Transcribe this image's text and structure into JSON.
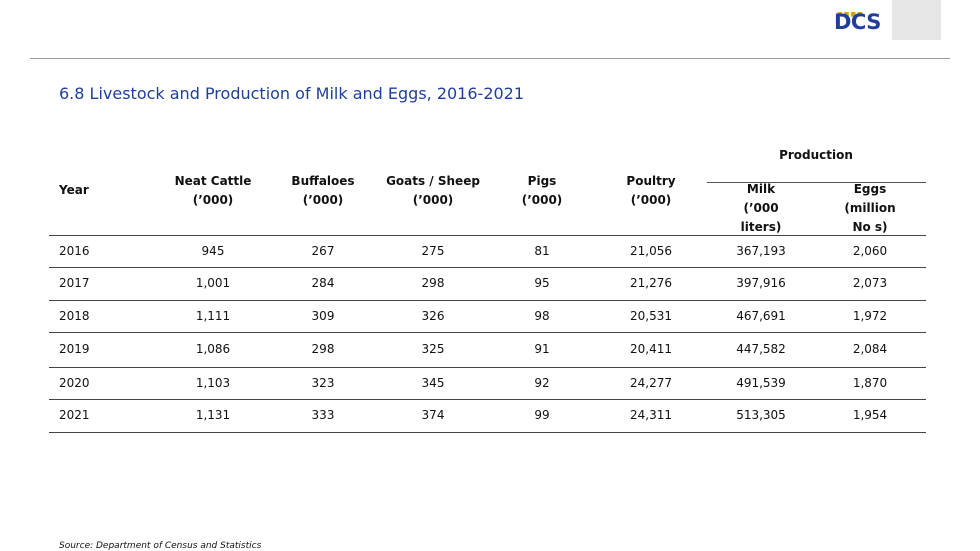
{
  "logo": {
    "text": "DCS",
    "dots": "■■■■"
  },
  "title": "6.8 Livestock and  Production of  Milk and  Eggs, 2016-2021",
  "source": "Source: Department of Census and Statistics",
  "table": {
    "group_header": "Production",
    "headers": {
      "year": "Year",
      "cattle": [
        "Neat Cattle",
        "(’000)"
      ],
      "buffaloes": [
        "Buffaloes",
        "(’000)"
      ],
      "goats": [
        "Goats / Sheep",
        "(’000)"
      ],
      "pigs": [
        "Pigs",
        "(’000)"
      ],
      "poultry": [
        "Poultry",
        "(’000)"
      ],
      "milk": [
        "Milk",
        "(’000",
        "liters)"
      ],
      "eggs": [
        "Eggs",
        "(million",
        "No s)"
      ]
    },
    "rows": [
      [
        "2016",
        "945",
        "267",
        "275",
        "81",
        "21,056",
        "367,193",
        "2,060"
      ],
      [
        "2017",
        "1,001",
        "284",
        "298",
        "95",
        "21,276",
        "397,916",
        "2,073"
      ],
      [
        "2018",
        "1,111",
        "309",
        "326",
        "98",
        "20,531",
        "467,691",
        "1,972"
      ],
      [
        "2019",
        "1,086",
        "298",
        "325",
        "91",
        "20,411",
        "447,582",
        "2,084"
      ],
      [
        "2020",
        "1,103",
        "323",
        "345",
        "92",
        "24,277",
        "491,539",
        "1,870"
      ],
      [
        "2021",
        "1,131",
        "333",
        "374",
        "99",
        "24,311",
        "513,305",
        "1,954"
      ]
    ]
  }
}
